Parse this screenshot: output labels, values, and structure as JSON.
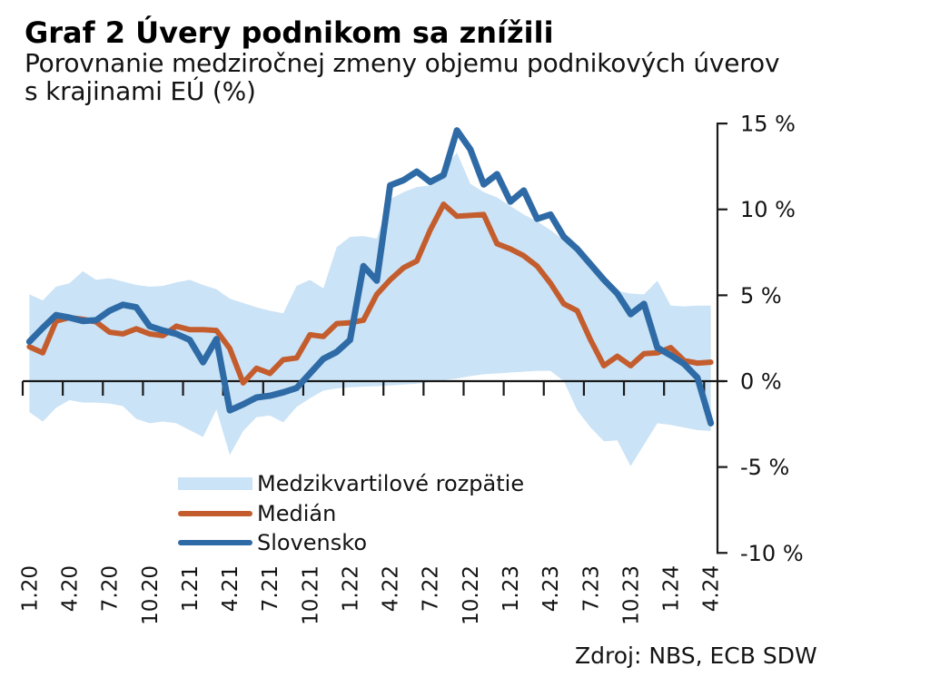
{
  "header": {
    "title": "Graf 2 Úvery podnikom sa znížili",
    "subtitle_line1": "Porovnanie medziročnej zmeny objemu podnikových úverov",
    "subtitle_line2": "s krajinami EÚ (%)"
  },
  "source": "Zdroj: NBS, ECB SDW",
  "colors": {
    "band": "#cbe3f6",
    "median": "#c45d2e",
    "slovensko": "#2e6ba6",
    "axis": "#1a1a1a",
    "text": "#131313"
  },
  "chart_data": {
    "type": "line",
    "title": "Graf 2 Úvery podnikom sa znížili",
    "subtitle": "Porovnanie medziročnej zmeny objemu podnikových úverov s krajinami EÚ (%)",
    "xlabel": "",
    "ylabel": "",
    "ylim": [
      -10,
      15
    ],
    "y_ticks": [
      15,
      10,
      5,
      0,
      -5,
      -10
    ],
    "y_tick_suffix": " %",
    "grid": false,
    "legend_position": "lower-left-inside",
    "x_unit": "month.year",
    "x_tick_labels": [
      "1.20",
      "4.20",
      "7.20",
      "10.20",
      "1.21",
      "4.21",
      "7.21",
      "10.21",
      "1.22",
      "4.22",
      "7.22",
      "10.22",
      "1.23",
      "4.23",
      "7.23",
      "10.23",
      "1.24",
      "4.24"
    ],
    "months_per_tick": 3,
    "series": [
      {
        "name": "Medzikvartilové rozpätie",
        "type": "band",
        "color": "#cbe3f6",
        "upper": [
          5.05,
          4.7,
          5.5,
          5.7,
          6.4,
          5.9,
          6.0,
          5.8,
          5.6,
          5.5,
          5.55,
          5.75,
          5.9,
          5.6,
          5.35,
          4.8,
          4.55,
          4.3,
          4.1,
          3.95,
          5.55,
          5.9,
          5.4,
          7.8,
          8.4,
          8.45,
          8.3,
          10.6,
          11.0,
          11.3,
          11.4,
          12.4,
          13.3,
          11.5,
          11.0,
          10.7,
          10.2,
          9.7,
          9.3,
          8.8,
          8.2,
          7.6,
          6.7,
          6.0,
          5.25,
          5.1,
          5.05,
          5.85,
          4.4,
          4.35,
          4.4,
          4.4
        ],
        "lower": [
          -1.8,
          -2.35,
          -1.55,
          -1.1,
          -1.25,
          -1.25,
          -1.3,
          -1.45,
          -2.2,
          -2.45,
          -2.35,
          -2.45,
          -2.85,
          -3.25,
          -1.65,
          -4.3,
          -2.9,
          -2.1,
          -2.0,
          -2.4,
          -1.5,
          -1.0,
          -0.55,
          -0.42,
          -0.36,
          -0.32,
          -0.3,
          -0.25,
          -0.2,
          -0.15,
          -0.05,
          0.05,
          0.15,
          0.3,
          0.4,
          0.45,
          0.5,
          0.55,
          0.6,
          0.6,
          0.0,
          -1.7,
          -2.7,
          -3.5,
          -3.45,
          -4.95,
          -3.7,
          -2.45,
          -2.55,
          -2.7,
          -2.85,
          -2.9
        ]
      },
      {
        "name": "Medián",
        "type": "line",
        "color": "#c45d2e",
        "width": 6,
        "values": [
          2.0,
          1.65,
          3.5,
          3.7,
          3.6,
          3.45,
          2.85,
          2.75,
          3.05,
          2.75,
          2.65,
          3.2,
          3.0,
          3.0,
          2.95,
          1.9,
          -0.1,
          0.75,
          0.45,
          1.25,
          1.35,
          2.7,
          2.6,
          3.35,
          3.4,
          3.55,
          5.05,
          5.9,
          6.6,
          7.0,
          8.8,
          10.3,
          9.6,
          9.65,
          9.7,
          8.0,
          7.7,
          7.3,
          6.7,
          5.7,
          4.5,
          4.1,
          2.4,
          0.9,
          1.45,
          0.9,
          1.6,
          1.65,
          1.95,
          1.2,
          1.05,
          1.1
        ]
      },
      {
        "name": "Slovensko",
        "type": "line",
        "color": "#2e6ba6",
        "width": 7,
        "values": [
          2.3,
          3.1,
          3.85,
          3.7,
          3.5,
          3.55,
          4.1,
          4.45,
          4.3,
          3.2,
          2.95,
          2.75,
          2.4,
          1.1,
          2.45,
          -1.7,
          -1.35,
          -0.95,
          -0.85,
          -0.65,
          -0.4,
          0.45,
          1.3,
          1.7,
          2.4,
          6.7,
          5.85,
          11.4,
          11.7,
          12.2,
          11.6,
          12.0,
          14.6,
          13.5,
          11.45,
          12.05,
          10.45,
          11.1,
          9.45,
          9.7,
          8.4,
          7.7,
          6.8,
          5.9,
          5.1,
          3.9,
          4.5,
          1.95,
          1.5,
          1.0,
          0.2,
          -2.45
        ]
      }
    ]
  }
}
